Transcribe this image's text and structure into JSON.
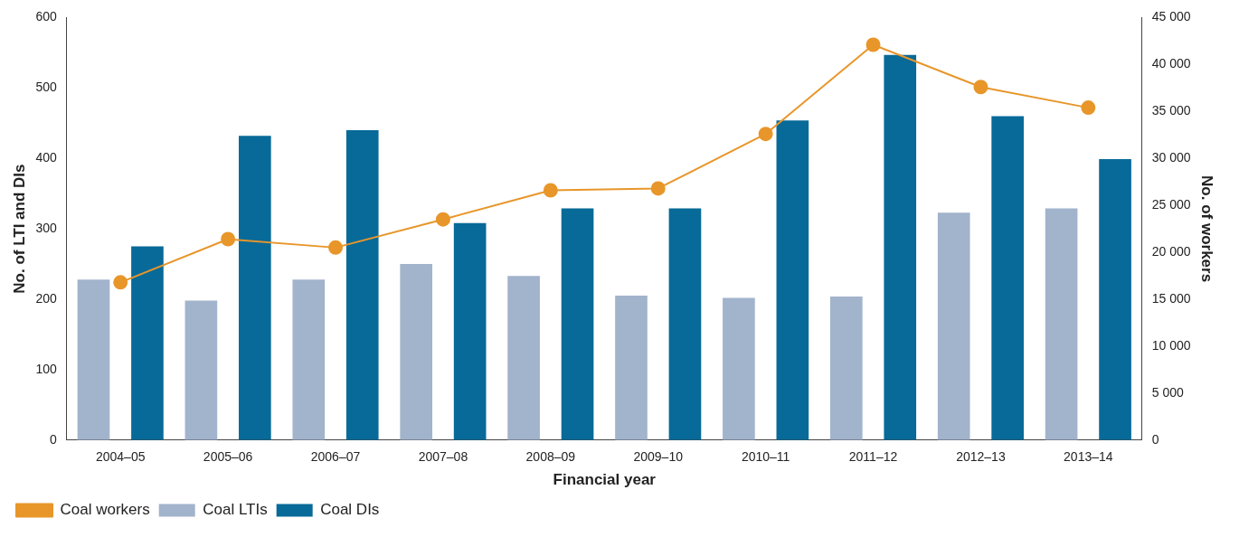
{
  "chart_data": {
    "type": "bar",
    "xlabel": "Financial year",
    "ylabel": "No. of LTI and DIs",
    "y2label": "No. of workers",
    "categories": [
      "2004–05",
      "2005–06",
      "2006–07",
      "2007–08",
      "2008–09",
      "2009–10",
      "2010–11",
      "2011–12",
      "2012–13",
      "2013–14"
    ],
    "series": [
      {
        "name": "Coal LTIs",
        "color": "#a2b3cc",
        "values": [
          228,
          198,
          228,
          250,
          233,
          205,
          202,
          204,
          323,
          329
        ]
      },
      {
        "name": "Coal DIs",
        "color": "#086a98",
        "values": [
          275,
          432,
          440,
          308,
          329,
          329,
          454,
          547,
          460,
          399
        ]
      },
      {
        "name": "Coal workers",
        "type": "line",
        "axis": "y2",
        "color": "#e8962a",
        "marker": "circle",
        "values": [
          16800,
          21400,
          20500,
          23500,
          26600,
          26800,
          32600,
          42100,
          37600,
          35400
        ]
      }
    ],
    "ylim": [
      0,
      600
    ],
    "yticks": [
      0,
      100,
      200,
      300,
      400,
      500,
      600
    ],
    "y2lim": [
      0,
      45000
    ],
    "y2ticks": [
      0,
      {
        "value": 5000,
        "label": "5 000"
      },
      {
        "value": 10000,
        "label": "10 000"
      },
      {
        "value": 15000,
        "label": "15 000"
      },
      {
        "value": 20000,
        "label": "20 000"
      },
      {
        "value": 25000,
        "label": "25 000"
      },
      {
        "value": 30000,
        "label": "30 000"
      },
      {
        "value": 35000,
        "label": "35 000"
      },
      {
        "value": 40000,
        "label": "40 000"
      },
      {
        "value": 45000,
        "label": "45 000"
      }
    ],
    "grid": false,
    "legend": "bottom left"
  }
}
